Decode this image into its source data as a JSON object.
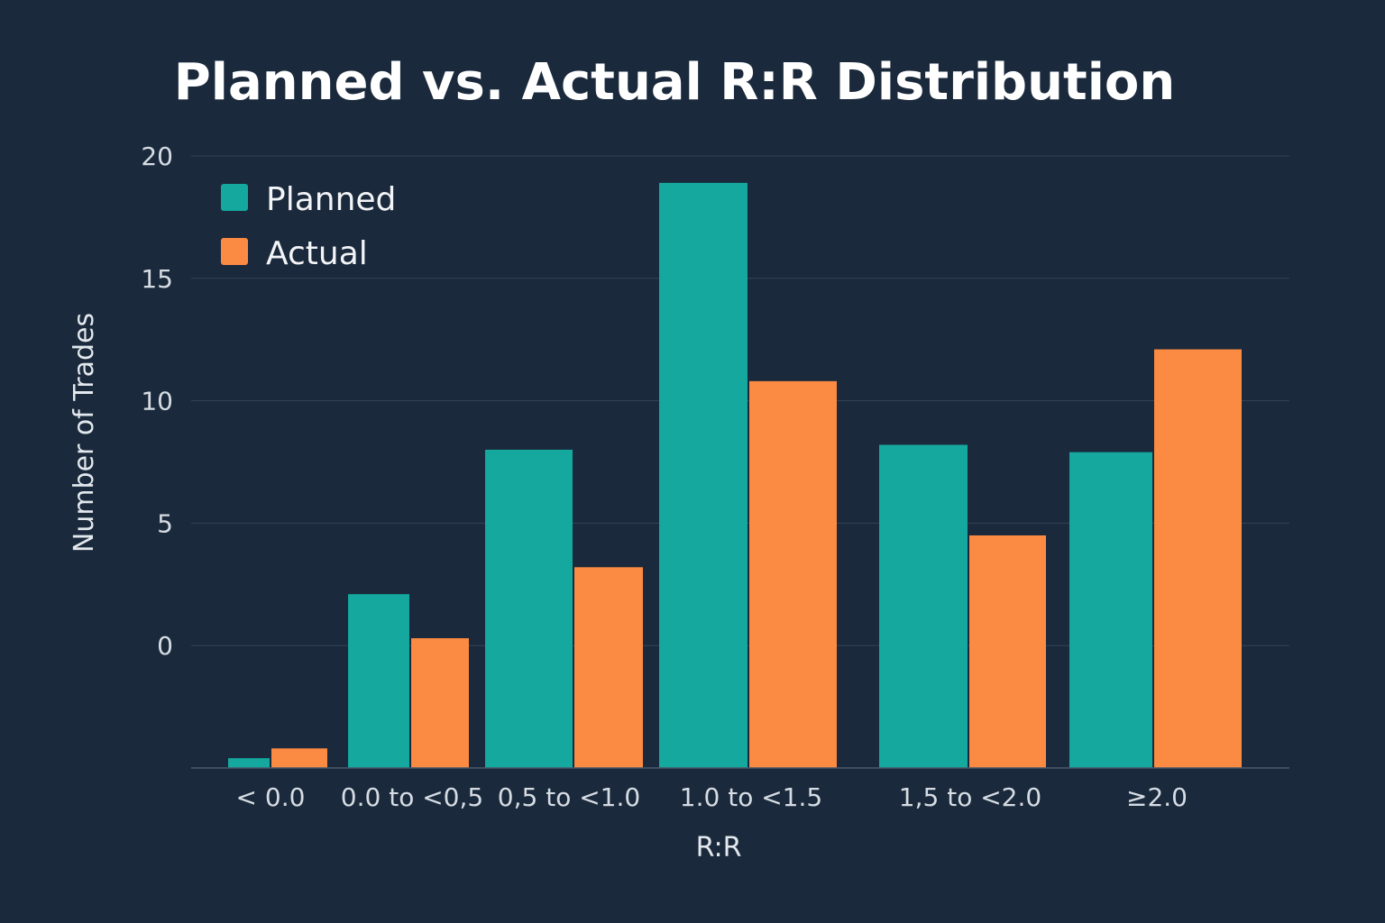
{
  "chart_data": {
    "type": "bar",
    "title": "Planned vs. Actual R:R Distribution",
    "xlabel": "R:R",
    "ylabel": "Number of Trades",
    "categories": [
      "< 0.0",
      "0.0 to <0,5",
      "0,5 to <1.0",
      "1.0 to <1.5",
      "1,5 to <2.0",
      "≥2.0"
    ],
    "series": [
      {
        "name": "Planned",
        "color": "#14a89e",
        "values": [
          -4.6,
          2.1,
          8.0,
          18.9,
          8.2,
          7.9
        ]
      },
      {
        "name": "Actual",
        "color": "#fb8a42",
        "values": [
          -4.2,
          0.3,
          3.2,
          10.8,
          4.5,
          12.1
        ]
      }
    ],
    "yticks": [
      0,
      5,
      10,
      15,
      20
    ],
    "ylim": [
      -5,
      20
    ],
    "grid": true,
    "legend": "top-left",
    "background": "#1a293b"
  }
}
